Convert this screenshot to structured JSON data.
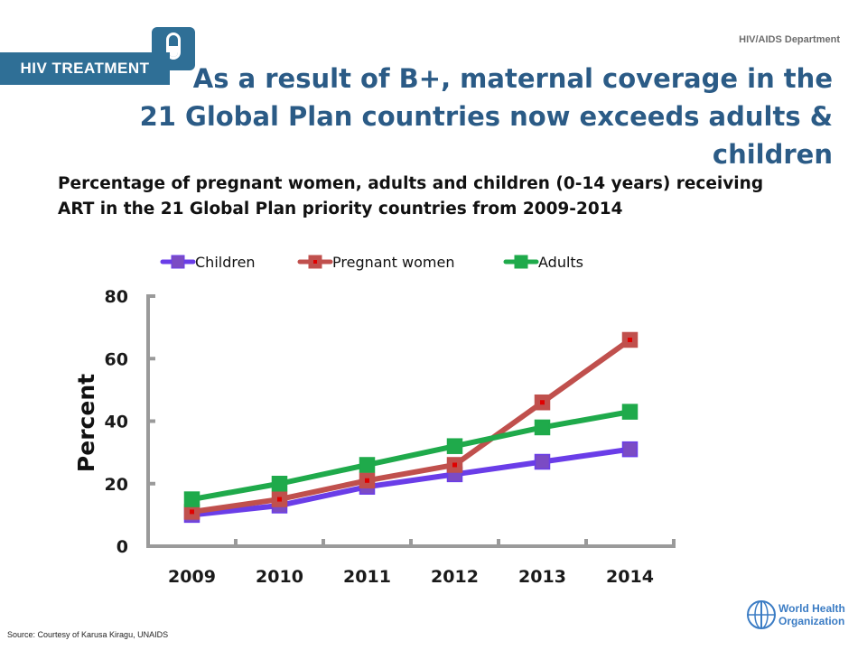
{
  "header": {
    "badge_label": "HIV TREATMENT",
    "department": "HIV/AIDS Department",
    "title_line1": "As a result of B+, maternal coverage in the",
    "title_line2": "21 Global Plan countries now exceeds adults & children",
    "badge_icon": "pill-icon"
  },
  "subtitle": {
    "line1": "Percentage of pregnant women, adults and children (0-14 years) receiving",
    "line2": "ART in the 21 Global Plan priority countries from 2009-2014"
  },
  "footer": {
    "source": "Source: Courtesy of Karusa Kiragu, UNAIDS",
    "logo_line1": "World Health",
    "logo_line2": "Organization",
    "logo_icon": "who-emblem-icon"
  },
  "chart_data": {
    "type": "line",
    "title": "",
    "xlabel": "",
    "ylabel": "Percent",
    "categories": [
      "2009",
      "2010",
      "2011",
      "2012",
      "2013",
      "2014"
    ],
    "ylim": [
      0,
      80
    ],
    "yticks": [
      0,
      20,
      40,
      60,
      80
    ],
    "grid": false,
    "legend_position": "top",
    "series": [
      {
        "name": "Children",
        "color": "#6a3de8",
        "marker_color": "#7b4bc4",
        "values": [
          10,
          13,
          19,
          23,
          27,
          31
        ]
      },
      {
        "name": "Pregnant women",
        "color": "#c0504d",
        "marker_color": "#c0504d",
        "values": [
          11,
          15,
          21,
          26,
          46,
          66
        ]
      },
      {
        "name": "Adults",
        "color": "#1faa4b",
        "marker_color": "#1faa4b",
        "values": [
          15,
          20,
          26,
          32,
          38,
          43
        ]
      }
    ]
  }
}
